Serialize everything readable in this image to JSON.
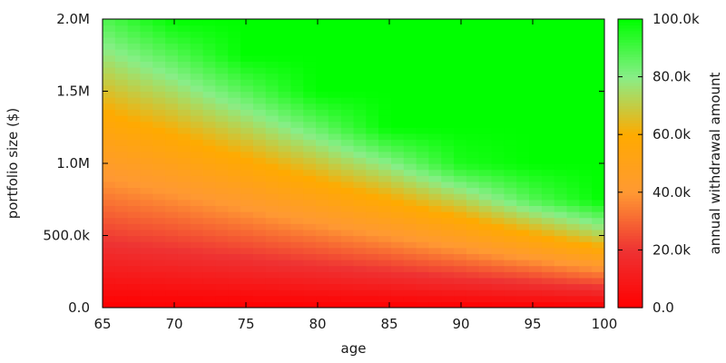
{
  "chart_data": {
    "type": "heatmap",
    "title": "",
    "xlabel": "age",
    "ylabel": "portfolio size ($)",
    "colorbar_label": "annual withdrawal amount",
    "xlim": [
      65,
      100
    ],
    "ylim": [
      0,
      2000000
    ],
    "clim": [
      0,
      100000
    ],
    "x_ticks": [
      {
        "value": 65,
        "label": "65"
      },
      {
        "value": 70,
        "label": "70"
      },
      {
        "value": 75,
        "label": "75"
      },
      {
        "value": 80,
        "label": "80"
      },
      {
        "value": 85,
        "label": "85"
      },
      {
        "value": 90,
        "label": "90"
      },
      {
        "value": 95,
        "label": "95"
      },
      {
        "value": 100,
        "label": "100"
      }
    ],
    "y_ticks": [
      {
        "value": 0,
        "label": "0.0"
      },
      {
        "value": 500000,
        "label": "500.0k"
      },
      {
        "value": 1000000,
        "label": "1.0M"
      },
      {
        "value": 1500000,
        "label": "1.5M"
      },
      {
        "value": 2000000,
        "label": "2.0M"
      }
    ],
    "colorbar_ticks": [
      {
        "value": 0,
        "label": "0.0"
      },
      {
        "value": 20000,
        "label": "20.0k"
      },
      {
        "value": 40000,
        "label": "40.0k"
      },
      {
        "value": 60000,
        "label": "60.0k"
      },
      {
        "value": 80000,
        "label": "80.0k"
      },
      {
        "value": 100000,
        "label": "100.0k"
      }
    ],
    "colorscale": [
      {
        "value": 0,
        "color": "#ff0000"
      },
      {
        "value": 20000,
        "color": "#ee3333"
      },
      {
        "value": 40000,
        "color": "#ff9933"
      },
      {
        "value": 60000,
        "color": "#ffaa00"
      },
      {
        "value": 80000,
        "color": "#88ee88"
      },
      {
        "value": 100000,
        "color": "#00ff00"
      }
    ],
    "x_values": [
      65,
      70,
      75,
      80,
      85,
      90,
      95,
      100
    ],
    "y_values": [
      0,
      250000,
      500000,
      750000,
      1000000,
      1250000,
      1500000,
      1750000,
      2000000
    ],
    "z_values": [
      [
        0,
        0,
        0,
        0,
        0,
        0,
        0,
        0
      ],
      [
        11000,
        12500,
        14500,
        17000,
        20000,
        24000,
        29000,
        36000
      ],
      [
        22000,
        25000,
        29000,
        34000,
        40000,
        48000,
        59000,
        72000
      ],
      [
        33000,
        37500,
        43500,
        51000,
        60000,
        72000,
        88000,
        100000
      ],
      [
        44000,
        50000,
        58000,
        68000,
        80000,
        96000,
        100000,
        100000
      ],
      [
        55000,
        62500,
        72500,
        85000,
        100000,
        100000,
        100000,
        100000
      ],
      [
        66000,
        75000,
        87000,
        100000,
        100000,
        100000,
        100000,
        100000
      ],
      [
        77000,
        87500,
        100000,
        100000,
        100000,
        100000,
        100000,
        100000
      ],
      [
        88000,
        100000,
        100000,
        100000,
        100000,
        100000,
        100000,
        100000
      ]
    ]
  }
}
